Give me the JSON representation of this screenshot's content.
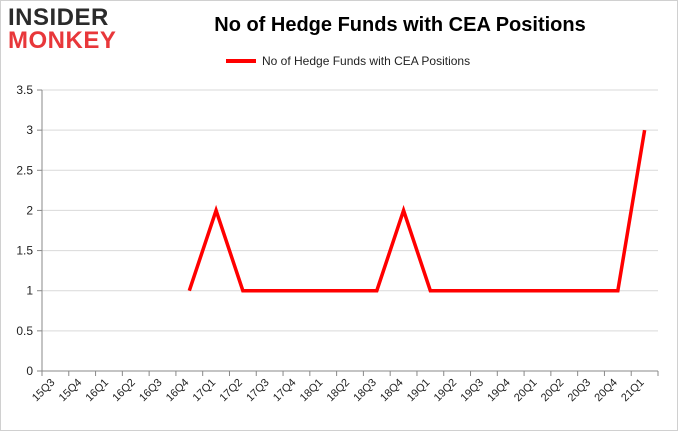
{
  "logo": {
    "line1": "INSIDER",
    "line2": "MONKEY"
  },
  "chart_data": {
    "type": "line",
    "title": "No of Hedge Funds with CEA Positions",
    "xlabel": "",
    "ylabel": "",
    "categories": [
      "15Q3",
      "15Q4",
      "16Q1",
      "16Q2",
      "16Q3",
      "16Q4",
      "17Q1",
      "17Q2",
      "17Q3",
      "17Q4",
      "18Q1",
      "18Q2",
      "18Q3",
      "18Q4",
      "19Q1",
      "19Q2",
      "19Q3",
      "19Q4",
      "20Q1",
      "20Q2",
      "20Q3",
      "20Q4",
      "21Q1"
    ],
    "series": [
      {
        "name": "No of Hedge Funds with CEA Positions",
        "color": "#ff0000",
        "values": [
          null,
          null,
          null,
          null,
          null,
          1,
          2,
          1,
          1,
          1,
          1,
          1,
          1,
          2,
          1,
          1,
          1,
          1,
          1,
          1,
          1,
          1,
          3
        ]
      }
    ],
    "ylim": [
      0,
      3.5
    ],
    "yticks": [
      "0",
      "0.5",
      "1",
      "1.5",
      "2",
      "2.5",
      "3",
      "3.5"
    ],
    "grid": true,
    "legend_position": "top"
  }
}
